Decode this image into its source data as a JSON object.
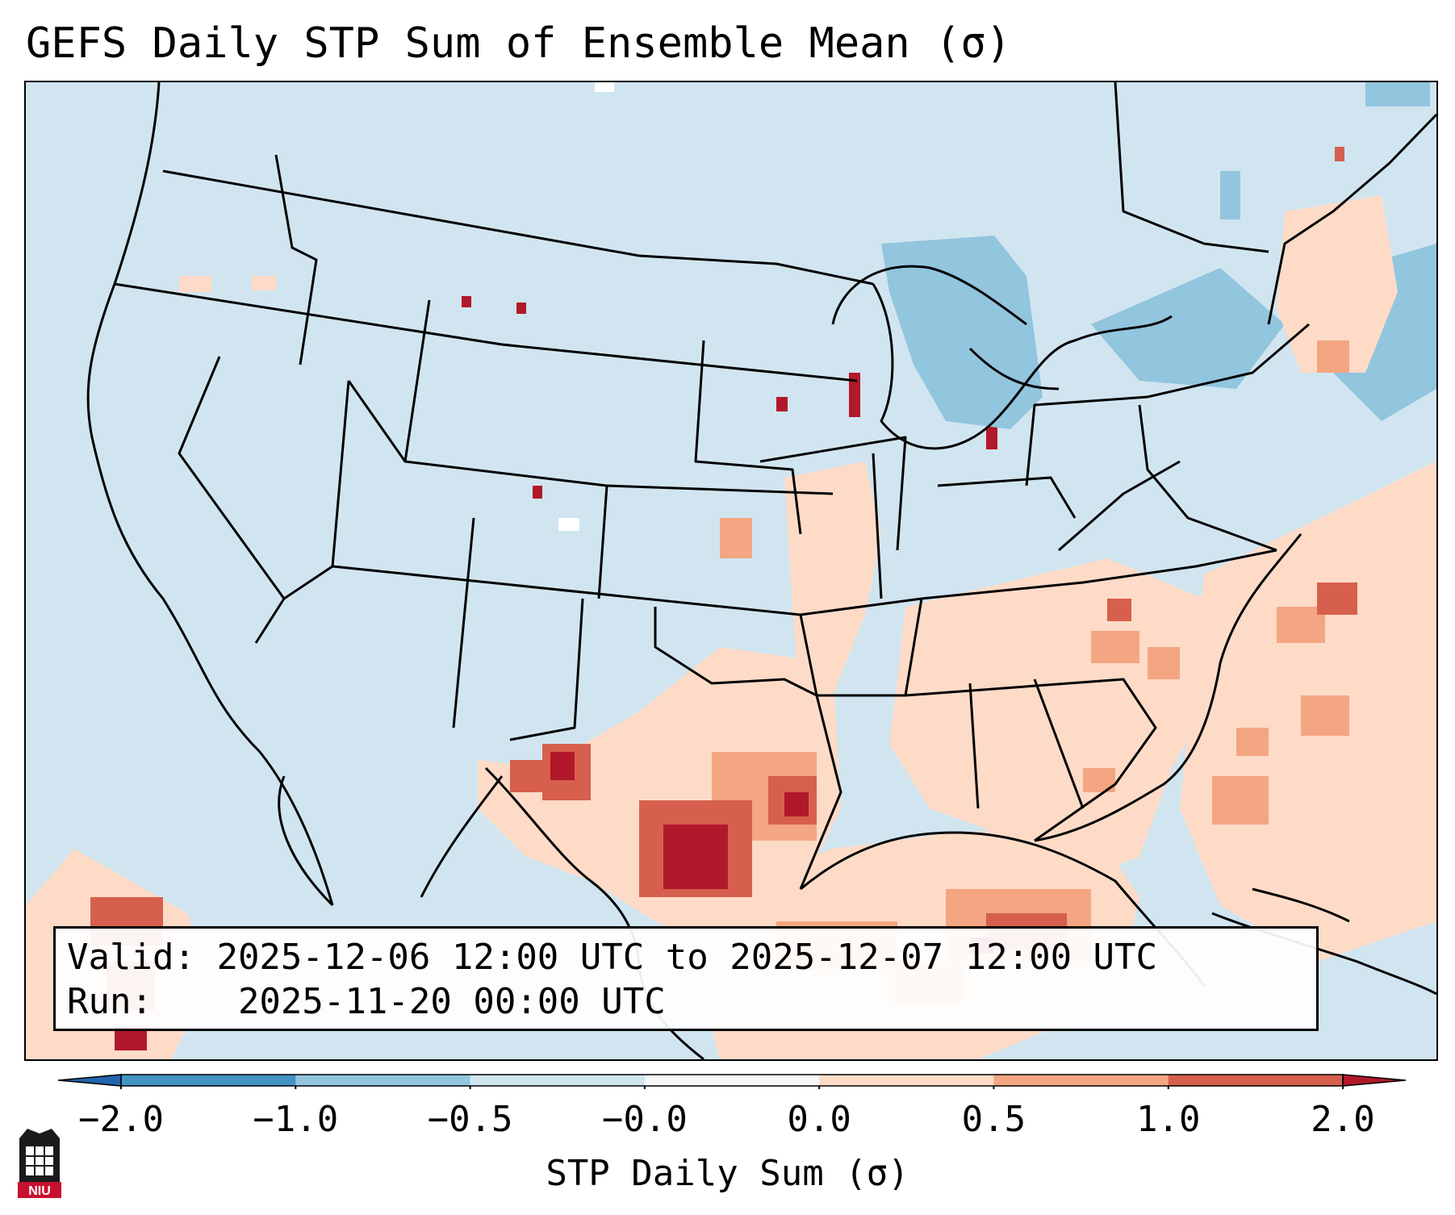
{
  "title": "GEFS Daily STP Sum of Ensemble Mean (σ)",
  "info": {
    "valid_label": "Valid:",
    "valid_value": "2025-12-06 12:00 UTC to 2025-12-07 12:00 UTC",
    "run_label": "Run:",
    "run_value": "2025-11-20 00:00 UTC"
  },
  "colorbar": {
    "label": "STP Daily Sum (σ)",
    "ticks": [
      "−2.0",
      "−1.0",
      "−0.5",
      "−0.0",
      "0.0",
      "0.5",
      "1.0",
      "2.0"
    ],
    "colors": [
      "#2166ac",
      "#4393c3",
      "#92c5de",
      "#d1e5f0",
      "#f7f7f7",
      "#fddbc7",
      "#f4a582",
      "#d6604d",
      "#b2182b"
    ]
  },
  "logo": {
    "text": "NIU",
    "icon": "niu-logo-icon"
  },
  "map": {
    "projection": "Lambert conformal, CONUS",
    "background_class_color": "#d1e5f0",
    "regions": [
      {
        "name": "texas-oklahoma-high",
        "value": 1.2
      },
      {
        "name": "gulf-of-mexico",
        "value": 0.7
      },
      {
        "name": "southeast-us",
        "value": 0.6
      },
      {
        "name": "atlantic-offshore",
        "value": 0.5
      },
      {
        "name": "great-lakes",
        "value": -0.7
      },
      {
        "name": "pacific-southwest",
        "value": 0.9
      }
    ]
  }
}
